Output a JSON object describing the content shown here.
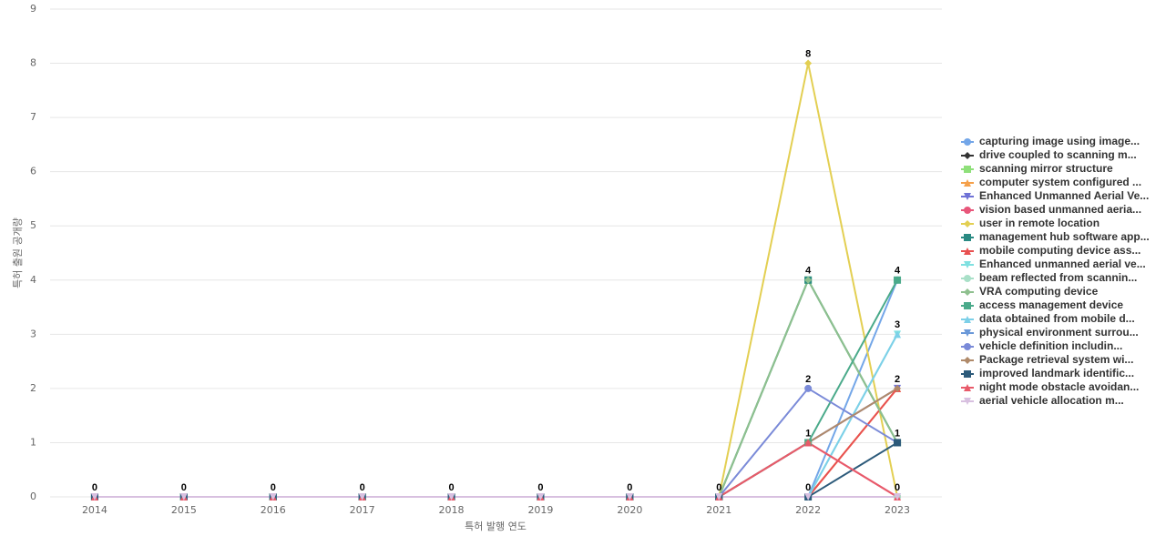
{
  "chart_data": {
    "type": "line",
    "xlabel": "특허 발행 연도",
    "ylabel": "특허 출원 공개량",
    "categories": [
      "2014",
      "2015",
      "2016",
      "2017",
      "2018",
      "2019",
      "2020",
      "2021",
      "2022",
      "2023"
    ],
    "ylim": [
      0,
      9
    ],
    "yticks": [
      0,
      1,
      2,
      3,
      4,
      5,
      6,
      7,
      8,
      9
    ],
    "grid": true,
    "legend": "right",
    "series": [
      {
        "name": "capturing image using image...",
        "color": "#73a6e8",
        "marker": "circle",
        "values": [
          0,
          0,
          0,
          0,
          0,
          0,
          0,
          0,
          0,
          4
        ]
      },
      {
        "name": "drive coupled to scanning m...",
        "color": "#333333",
        "marker": "diamond",
        "values": [
          0,
          0,
          0,
          0,
          0,
          0,
          0,
          0,
          0,
          0
        ]
      },
      {
        "name": "scanning mirror structure",
        "color": "#8fe07a",
        "marker": "square",
        "values": [
          0,
          0,
          0,
          0,
          0,
          0,
          0,
          0,
          4,
          1
        ]
      },
      {
        "name": "computer system configured ...",
        "color": "#f5a04a",
        "marker": "triangle",
        "values": [
          0,
          0,
          0,
          0,
          0,
          0,
          0,
          0,
          0,
          2
        ]
      },
      {
        "name": "Enhanced Unmanned Aerial Ve...",
        "color": "#6f72d6",
        "marker": "triangle-down",
        "values": [
          0,
          0,
          0,
          0,
          0,
          0,
          0,
          0,
          1,
          2
        ]
      },
      {
        "name": "vision based unmanned aeria...",
        "color": "#e8567a",
        "marker": "circle",
        "values": [
          0,
          0,
          0,
          0,
          0,
          0,
          0,
          0,
          1,
          0
        ]
      },
      {
        "name": "user in remote location",
        "color": "#e3cf52",
        "marker": "diamond",
        "values": [
          0,
          0,
          0,
          0,
          0,
          0,
          0,
          0,
          8,
          0
        ]
      },
      {
        "name": "management hub software app...",
        "color": "#2a8a83",
        "marker": "square",
        "values": [
          0,
          0,
          0,
          0,
          0,
          0,
          0,
          0,
          4,
          1
        ]
      },
      {
        "name": "mobile computing device ass...",
        "color": "#e85050",
        "marker": "triangle",
        "values": [
          0,
          0,
          0,
          0,
          0,
          0,
          0,
          0,
          0,
          2
        ]
      },
      {
        "name": "Enhanced unmanned aerial ve...",
        "color": "#7fe0e0",
        "marker": "triangle-down",
        "values": [
          0,
          0,
          0,
          0,
          0,
          0,
          0,
          0,
          0,
          3
        ]
      },
      {
        "name": "beam reflected from scannin...",
        "color": "#a9e0c8",
        "marker": "circle",
        "values": [
          0,
          0,
          0,
          0,
          0,
          0,
          0,
          0,
          0,
          0
        ]
      },
      {
        "name": "VRA computing device",
        "color": "#8fc08f",
        "marker": "diamond",
        "values": [
          0,
          0,
          0,
          0,
          0,
          0,
          0,
          0,
          4,
          1
        ]
      },
      {
        "name": "access management device",
        "color": "#4aaa8a",
        "marker": "square",
        "values": [
          0,
          0,
          0,
          0,
          0,
          0,
          0,
          0,
          1,
          4
        ]
      },
      {
        "name": "data obtained from mobile d...",
        "color": "#7dd0e8",
        "marker": "triangle",
        "values": [
          0,
          0,
          0,
          0,
          0,
          0,
          0,
          0,
          0,
          3
        ]
      },
      {
        "name": "physical environment surrou...",
        "color": "#6a98d8",
        "marker": "triangle-down",
        "values": [
          0,
          0,
          0,
          0,
          0,
          0,
          0,
          0,
          0,
          0
        ]
      },
      {
        "name": "vehicle definition includin...",
        "color": "#7a8ad8",
        "marker": "circle",
        "values": [
          0,
          0,
          0,
          0,
          0,
          0,
          0,
          0,
          2,
          1
        ]
      },
      {
        "name": "Package retrieval system wi...",
        "color": "#b08a6a",
        "marker": "diamond",
        "values": [
          0,
          0,
          0,
          0,
          0,
          0,
          0,
          0,
          1,
          2
        ]
      },
      {
        "name": "improved landmark identific...",
        "color": "#2c5a7a",
        "marker": "square",
        "values": [
          0,
          0,
          0,
          0,
          0,
          0,
          0,
          0,
          0,
          1
        ]
      },
      {
        "name": "night mode obstacle avoidan...",
        "color": "#e85a6a",
        "marker": "triangle",
        "values": [
          0,
          0,
          0,
          0,
          0,
          0,
          0,
          0,
          1,
          0
        ]
      },
      {
        "name": "aerial vehicle allocation m...",
        "color": "#d8c0e0",
        "marker": "triangle-down",
        "values": [
          0,
          0,
          0,
          0,
          0,
          0,
          0,
          0,
          0,
          0
        ]
      }
    ]
  }
}
